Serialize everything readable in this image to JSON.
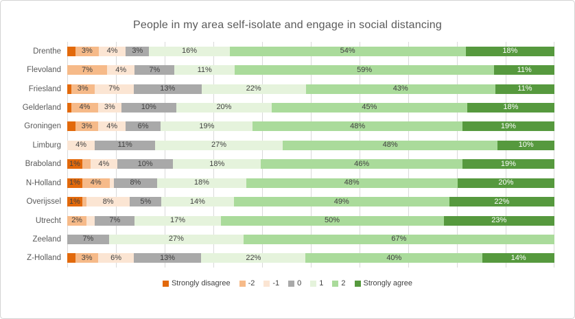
{
  "chart_data": {
    "type": "bar",
    "stacked": true,
    "orientation": "horizontal",
    "title": "People in my area self-isolate and engage in social distancing",
    "xlabel": "",
    "ylabel": "",
    "xlim": [
      0,
      100
    ],
    "grid_step_percent": 10,
    "grid_on": true,
    "legend_position": "bottom",
    "colors": {
      "grid": "#d9d9d9",
      "title_text": "#595959",
      "axis_text": "#595959",
      "label_text": "#404040",
      "frame_border": "#d2d2d2"
    },
    "categories": [
      "Drenthe",
      "Flevoland",
      "Friesland",
      "Gelderland",
      "Groningen",
      "Limburg",
      "Braboland",
      "N-Holland",
      "Overijssel",
      "Utrecht",
      "Zeeland",
      "Z-Holland"
    ],
    "series": [
      {
        "name": "Strongly disagree",
        "color": "#e2690b",
        "text_color": "#404040",
        "values": [
          2,
          0,
          1,
          1,
          2,
          0,
          1,
          1,
          1,
          0,
          0,
          2
        ],
        "labels": [
          "",
          "",
          "",
          "",
          "",
          "",
          "1%",
          "1%",
          "1%",
          "",
          "",
          ""
        ]
      },
      {
        "name": "-2",
        "color": "#f6ba89",
        "text_color": "#404040",
        "values": [
          3,
          7,
          3,
          4,
          3,
          0,
          2,
          4,
          1,
          2,
          0,
          3
        ],
        "labels": [
          "3%",
          "7%",
          "3%",
          "4%",
          "3%",
          "",
          "",
          "4%",
          "",
          "2%",
          "",
          "3%"
        ]
      },
      {
        "name": "-1",
        "color": "#fbe5d3",
        "text_color": "#404040",
        "values": [
          4,
          4,
          7,
          3,
          4,
          4,
          4,
          1,
          8,
          2,
          0,
          6
        ],
        "labels": [
          "4%",
          "4%",
          "7%",
          "3%",
          "4%",
          "4%",
          "4%",
          "",
          "8%",
          "",
          "",
          "6%"
        ]
      },
      {
        "name": "0",
        "color": "#a9a9a9",
        "text_color": "#404040",
        "values": [
          3,
          7,
          13,
          10,
          6,
          11,
          10,
          8,
          5,
          7,
          7,
          13
        ],
        "labels": [
          "3%",
          "7%",
          "13%",
          "10%",
          "6%",
          "11%",
          "10%",
          "8%",
          "5%",
          "7%",
          "7%",
          "13%"
        ]
      },
      {
        "name": "1",
        "color": "#e5f3dc",
        "text_color": "#404040",
        "values": [
          16,
          11,
          22,
          20,
          19,
          27,
          18,
          18,
          14,
          17,
          27,
          22
        ],
        "labels": [
          "16%",
          "11%",
          "22%",
          "20%",
          "19%",
          "27%",
          "18%",
          "18%",
          "14%",
          "17%",
          "27%",
          "22%"
        ]
      },
      {
        "name": "2",
        "color": "#aadb9b",
        "text_color": "#404040",
        "values": [
          54,
          59,
          43,
          45,
          48,
          48,
          46,
          48,
          49,
          50,
          67,
          40
        ],
        "labels": [
          "54%",
          "59%",
          "43%",
          "45%",
          "48%",
          "48%",
          "46%",
          "48%",
          "49%",
          "50%",
          "67%",
          "40%"
        ]
      },
      {
        "name": "Strongly agree",
        "color": "#56993e",
        "text_color": "#ffffff",
        "values": [
          18,
          11,
          11,
          18,
          19,
          10,
          19,
          20,
          22,
          23,
          0,
          14
        ],
        "labels": [
          "18%",
          "11%",
          "11%",
          "18%",
          "19%",
          "10%",
          "19%",
          "20%",
          "22%",
          "23%",
          "",
          "14%"
        ]
      }
    ]
  }
}
